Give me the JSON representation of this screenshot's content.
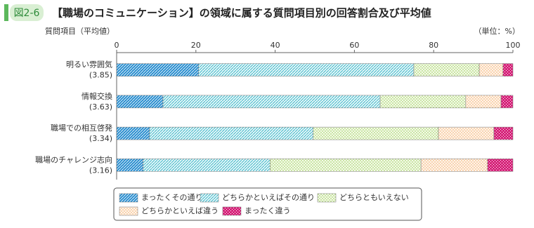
{
  "chart_data": {
    "type": "stacked-bar-horizontal",
    "badge": "図2-6",
    "title": "【職場のコミュニケーション】の領域に属する質問項目別の回答割合及び平均値",
    "y_label": "質問項目（平均値）",
    "unit_label": "（単位：%）",
    "categories": [
      "明るい雰囲気",
      "情報交換",
      "職場での相互啓発",
      "職場のチャレンジ志向"
    ],
    "category_notes": [
      "(3.85)",
      "(3.63)",
      "(3.34)",
      "(3.16)"
    ],
    "xlim": [
      0,
      100
    ],
    "xticks": [
      0,
      20,
      40,
      60,
      80,
      100
    ],
    "series": [
      {
        "name": "まったくその通り",
        "color": "#2b8fd0",
        "values": [
          20.7,
          11.7,
          8.3,
          6.7
        ]
      },
      {
        "name": "どちらかといえばその通り",
        "color": "#3fb6c8",
        "values": [
          54.3,
          54.8,
          41.3,
          32.0
        ]
      },
      {
        "name": "どちらともいえない",
        "color": "#8cc63f",
        "values": [
          16.5,
          21.6,
          31.6,
          38.1
        ]
      },
      {
        "name": "どちらかといえば違う",
        "color": "#f0a35a",
        "values": [
          6.0,
          8.9,
          14.0,
          16.8
        ]
      },
      {
        "name": "まったく違う",
        "color": "#d6237a",
        "values": [
          2.5,
          3.0,
          4.8,
          6.4
        ]
      }
    ]
  }
}
